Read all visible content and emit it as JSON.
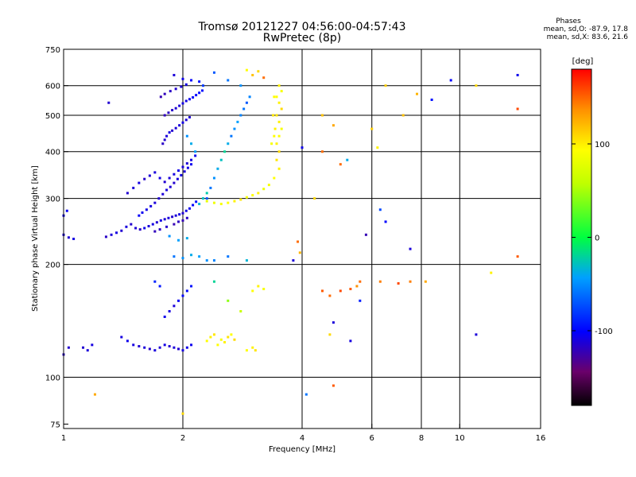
{
  "header": {
    "title": "Tromsø 20121227 04:56:00-04:57:43",
    "subtitle": "RwPretec (8p)",
    "stats_title": "Phases",
    "stats_line1": "mean, sd,O: -87.9, 17.8",
    "stats_line2": "mean, sd,X:  83.6, 21.6"
  },
  "chart_data": {
    "type": "scatter",
    "xlabel": "Frequency [MHz]",
    "ylabel": "Stationary phase Virtual Height [km]",
    "x_scale": "log",
    "y_scale": "log",
    "xlim": [
      1,
      16
    ],
    "ylim": [
      73,
      750
    ],
    "x_ticks": [
      1,
      2,
      4,
      6,
      8,
      10,
      16
    ],
    "y_ticks": [
      75,
      100,
      200,
      300,
      400,
      500,
      600,
      750
    ],
    "grid_x": [
      2,
      4,
      6,
      8,
      10
    ],
    "grid_y": [
      100,
      200,
      300,
      400,
      500,
      600
    ],
    "colorbar": {
      "label": "[deg]",
      "range": [
        -180,
        180
      ],
      "ticks": [
        -100,
        0,
        100
      ]
    },
    "points": [
      [
        1.0,
        240,
        -110
      ],
      [
        1.03,
        236,
        -112
      ],
      [
        1.06,
        234,
        -108
      ],
      [
        1.0,
        270,
        -105
      ],
      [
        1.02,
        278,
        -103
      ],
      [
        1.28,
        237,
        -115
      ],
      [
        1.32,
        240,
        -110
      ],
      [
        1.36,
        243,
        -108
      ],
      [
        1.4,
        246,
        -112
      ],
      [
        1.44,
        252,
        -109
      ],
      [
        1.48,
        256,
        -113
      ],
      [
        1.52,
        250,
        -111
      ],
      [
        1.56,
        248,
        -115
      ],
      [
        1.6,
        250,
        -106
      ],
      [
        1.64,
        253,
        -110
      ],
      [
        1.68,
        256,
        -108
      ],
      [
        1.72,
        259,
        -112
      ],
      [
        1.76,
        262,
        -107
      ],
      [
        1.8,
        264,
        -111
      ],
      [
        1.84,
        266,
        -109
      ],
      [
        1.88,
        268,
        -113
      ],
      [
        1.92,
        270,
        -110
      ],
      [
        1.96,
        272,
        -108
      ],
      [
        2.0,
        274,
        -112
      ],
      [
        2.04,
        278,
        -106
      ],
      [
        2.08,
        282,
        -104
      ],
      [
        2.12,
        288,
        -100
      ],
      [
        2.16,
        294,
        -95
      ],
      [
        1.7,
        245,
        -118
      ],
      [
        1.75,
        248,
        -116
      ],
      [
        1.82,
        252,
        -114
      ],
      [
        1.9,
        256,
        -120
      ],
      [
        1.95,
        260,
        -117
      ],
      [
        2.0,
        262,
        -119
      ],
      [
        2.05,
        266,
        -115
      ],
      [
        1.55,
        270,
        -102
      ],
      [
        1.58,
        275,
        -104
      ],
      [
        1.62,
        280,
        -106
      ],
      [
        1.66,
        286,
        -108
      ],
      [
        1.7,
        292,
        -110
      ],
      [
        1.74,
        300,
        -112
      ],
      [
        1.78,
        308,
        -110
      ],
      [
        1.82,
        316,
        -108
      ],
      [
        1.86,
        322,
        -111
      ],
      [
        1.9,
        330,
        -113
      ],
      [
        1.94,
        338,
        -109
      ],
      [
        1.98,
        346,
        -107
      ],
      [
        2.02,
        354,
        -110
      ],
      [
        2.06,
        362,
        -106
      ],
      [
        2.1,
        370,
        -104
      ],
      [
        1.45,
        310,
        -112
      ],
      [
        1.5,
        320,
        -110
      ],
      [
        1.55,
        330,
        -108
      ],
      [
        1.6,
        338,
        -114
      ],
      [
        1.65,
        345,
        -111
      ],
      [
        1.7,
        352,
        -109
      ],
      [
        1.75,
        340,
        -107
      ],
      [
        1.8,
        332,
        -112
      ],
      [
        1.85,
        340,
        -110
      ],
      [
        1.9,
        348,
        -108
      ],
      [
        1.95,
        356,
        -106
      ],
      [
        2.0,
        364,
        -109
      ],
      [
        2.05,
        372,
        -111
      ],
      [
        2.1,
        380,
        -108
      ],
      [
        2.15,
        390,
        -105
      ],
      [
        1.78,
        420,
        -115
      ],
      [
        1.8,
        430,
        -112
      ],
      [
        1.82,
        440,
        -110
      ],
      [
        1.85,
        450,
        -108
      ],
      [
        1.88,
        455,
        -113
      ],
      [
        1.92,
        462,
        -111
      ],
      [
        1.96,
        470,
        -109
      ],
      [
        2.0,
        478,
        -107
      ],
      [
        2.04,
        486,
        -110
      ],
      [
        2.08,
        494,
        -112
      ],
      [
        1.8,
        500,
        -118
      ],
      [
        1.84,
        508,
        -116
      ],
      [
        1.88,
        516,
        -114
      ],
      [
        1.92,
        522,
        -112
      ],
      [
        1.96,
        530,
        -110
      ],
      [
        2.0,
        538,
        -108
      ],
      [
        2.04,
        546,
        -106
      ],
      [
        2.08,
        552,
        -104
      ],
      [
        2.12,
        558,
        -102
      ],
      [
        2.16,
        566,
        -100
      ],
      [
        2.2,
        574,
        -98
      ],
      [
        2.24,
        582,
        -96
      ],
      [
        1.76,
        560,
        -120
      ],
      [
        1.8,
        570,
        -118
      ],
      [
        1.86,
        580,
        -115
      ],
      [
        1.92,
        588,
        -113
      ],
      [
        1.98,
        596,
        -111
      ],
      [
        2.04,
        604,
        -108
      ],
      [
        1.9,
        640,
        -110
      ],
      [
        2.0,
        625,
        -105
      ],
      [
        2.1,
        620,
        -100
      ],
      [
        2.2,
        615,
        -95
      ],
      [
        1.3,
        540,
        -112
      ],
      [
        2.3,
        300,
        -70
      ],
      [
        2.35,
        320,
        -60
      ],
      [
        2.4,
        340,
        -50
      ],
      [
        2.45,
        360,
        -40
      ],
      [
        2.5,
        380,
        -30
      ],
      [
        2.55,
        400,
        -20
      ],
      [
        2.6,
        420,
        -40
      ],
      [
        2.65,
        440,
        -60
      ],
      [
        2.7,
        460,
        -50
      ],
      [
        2.75,
        480,
        -45
      ],
      [
        2.8,
        500,
        -55
      ],
      [
        2.85,
        520,
        -60
      ],
      [
        2.9,
        540,
        -70
      ],
      [
        2.95,
        560,
        -55
      ],
      [
        2.2,
        290,
        -35
      ],
      [
        2.25,
        300,
        -30
      ],
      [
        2.3,
        310,
        -25
      ],
      [
        2.15,
        400,
        -45
      ],
      [
        2.1,
        420,
        -40
      ],
      [
        2.05,
        440,
        -50
      ],
      [
        2.25,
        600,
        -80
      ],
      [
        2.4,
        650,
        -70
      ],
      [
        2.6,
        620,
        -60
      ],
      [
        2.8,
        600,
        -50
      ],
      [
        2.3,
        295,
        80
      ],
      [
        2.4,
        292,
        85
      ],
      [
        2.5,
        290,
        90
      ],
      [
        2.6,
        292,
        95
      ],
      [
        2.7,
        295,
        100
      ],
      [
        2.8,
        298,
        105
      ],
      [
        2.9,
        302,
        90
      ],
      [
        3.0,
        306,
        95
      ],
      [
        3.1,
        310,
        100
      ],
      [
        3.2,
        318,
        85
      ],
      [
        3.3,
        326,
        90
      ],
      [
        3.4,
        340,
        95
      ],
      [
        3.5,
        360,
        100
      ],
      [
        3.45,
        380,
        105
      ],
      [
        3.5,
        400,
        110
      ],
      [
        3.45,
        420,
        100
      ],
      [
        3.5,
        440,
        95
      ],
      [
        3.55,
        460,
        90
      ],
      [
        3.5,
        480,
        100
      ],
      [
        3.45,
        500,
        105
      ],
      [
        3.55,
        520,
        110
      ],
      [
        3.5,
        540,
        100
      ],
      [
        3.45,
        560,
        95
      ],
      [
        3.55,
        580,
        90
      ],
      [
        3.5,
        600,
        100
      ],
      [
        3.4,
        440,
        95
      ],
      [
        3.42,
        460,
        100
      ],
      [
        3.38,
        500,
        105
      ],
      [
        3.4,
        560,
        95
      ],
      [
        3.35,
        420,
        90
      ],
      [
        3.0,
        640,
        120
      ],
      [
        3.2,
        630,
        150
      ],
      [
        3.1,
        655,
        110
      ],
      [
        2.9,
        660,
        95
      ],
      [
        1.12,
        120,
        -112
      ],
      [
        1.15,
        118,
        -110
      ],
      [
        1.18,
        122,
        -108
      ],
      [
        1.0,
        115,
        -115
      ],
      [
        1.03,
        120,
        -113
      ],
      [
        1.5,
        122,
        -108
      ],
      [
        1.55,
        121,
        -112
      ],
      [
        1.6,
        120,
        -110
      ],
      [
        1.65,
        119,
        -114
      ],
      [
        1.7,
        118,
        -109
      ],
      [
        1.75,
        120,
        -111
      ],
      [
        1.8,
        122,
        -107
      ],
      [
        1.85,
        121,
        -113
      ],
      [
        1.9,
        120,
        -110
      ],
      [
        1.95,
        119,
        -112
      ],
      [
        2.0,
        118,
        -108
      ],
      [
        2.05,
        120,
        -106
      ],
      [
        2.1,
        122,
        -104
      ],
      [
        1.45,
        125,
        -105
      ],
      [
        1.4,
        128,
        -108
      ],
      [
        1.8,
        145,
        -105
      ],
      [
        1.85,
        150,
        -108
      ],
      [
        1.9,
        155,
        -110
      ],
      [
        1.95,
        160,
        -103
      ],
      [
        2.0,
        165,
        -100
      ],
      [
        2.05,
        170,
        -98
      ],
      [
        2.1,
        175,
        -95
      ],
      [
        1.7,
        180,
        -88
      ],
      [
        1.75,
        175,
        -92
      ],
      [
        1.9,
        210,
        -60
      ],
      [
        2.0,
        208,
        -50
      ],
      [
        2.1,
        212,
        -40
      ],
      [
        2.2,
        210,
        -45
      ],
      [
        2.3,
        205,
        -50
      ],
      [
        2.05,
        235,
        -40
      ],
      [
        1.95,
        232,
        -45
      ],
      [
        1.85,
        238,
        -50
      ],
      [
        2.4,
        205,
        -55
      ],
      [
        2.6,
        210,
        -60
      ],
      [
        2.9,
        205,
        -35
      ],
      [
        2.3,
        125,
        95
      ],
      [
        2.35,
        128,
        100
      ],
      [
        2.4,
        130,
        105
      ],
      [
        2.45,
        122,
        95
      ],
      [
        2.5,
        126,
        90
      ],
      [
        2.55,
        124,
        100
      ],
      [
        2.6,
        128,
        105
      ],
      [
        2.65,
        130,
        95
      ],
      [
        2.7,
        126,
        110
      ],
      [
        2.9,
        118,
        95
      ],
      [
        3.0,
        120,
        100
      ],
      [
        3.05,
        118,
        105
      ],
      [
        2.8,
        150,
        60
      ],
      [
        2.6,
        160,
        40
      ],
      [
        2.4,
        180,
        -20
      ],
      [
        3.0,
        170,
        95
      ],
      [
        3.1,
        175,
        100
      ],
      [
        3.2,
        172,
        90
      ],
      [
        4.5,
        170,
        155
      ],
      [
        4.7,
        165,
        150
      ],
      [
        5.0,
        170,
        160
      ],
      [
        5.3,
        172,
        155
      ],
      [
        5.5,
        175,
        140
      ],
      [
        5.6,
        180,
        150
      ],
      [
        6.3,
        180,
        145
      ],
      [
        7.0,
        178,
        160
      ],
      [
        7.5,
        180,
        145
      ],
      [
        8.2,
        180,
        130
      ],
      [
        4.8,
        140,
        -110
      ],
      [
        5.3,
        125,
        -108
      ],
      [
        5.6,
        160,
        -90
      ],
      [
        6.5,
        260,
        -100
      ],
      [
        7.5,
        220,
        -110
      ],
      [
        4.0,
        410,
        -105
      ],
      [
        4.5,
        400,
        150
      ],
      [
        5.0,
        370,
        150
      ],
      [
        5.2,
        380,
        -40
      ],
      [
        6.3,
        280,
        -75
      ],
      [
        4.3,
        300,
        110
      ],
      [
        4.5,
        500,
        120
      ],
      [
        4.8,
        470,
        130
      ],
      [
        6.0,
        460,
        115
      ],
      [
        6.2,
        410,
        100
      ],
      [
        6.5,
        600,
        115
      ],
      [
        7.2,
        500,
        120
      ],
      [
        7.8,
        570,
        125
      ],
      [
        8.5,
        550,
        -95
      ],
      [
        9.5,
        620,
        -100
      ],
      [
        11.0,
        600,
        110
      ],
      [
        12.0,
        190,
        100
      ],
      [
        11.0,
        130,
        -110
      ],
      [
        14.0,
        640,
        -105
      ],
      [
        14.0,
        520,
        160
      ],
      [
        14.0,
        210,
        155
      ],
      [
        4.8,
        95,
        155
      ],
      [
        4.1,
        90,
        -60
      ],
      [
        1.2,
        90,
        130
      ],
      [
        2.0,
        80,
        110
      ],
      [
        3.8,
        205,
        -110
      ],
      [
        3.9,
        230,
        150
      ],
      [
        3.95,
        215,
        125
      ],
      [
        5.8,
        240,
        -120
      ],
      [
        4.7,
        130,
        110
      ]
    ]
  }
}
